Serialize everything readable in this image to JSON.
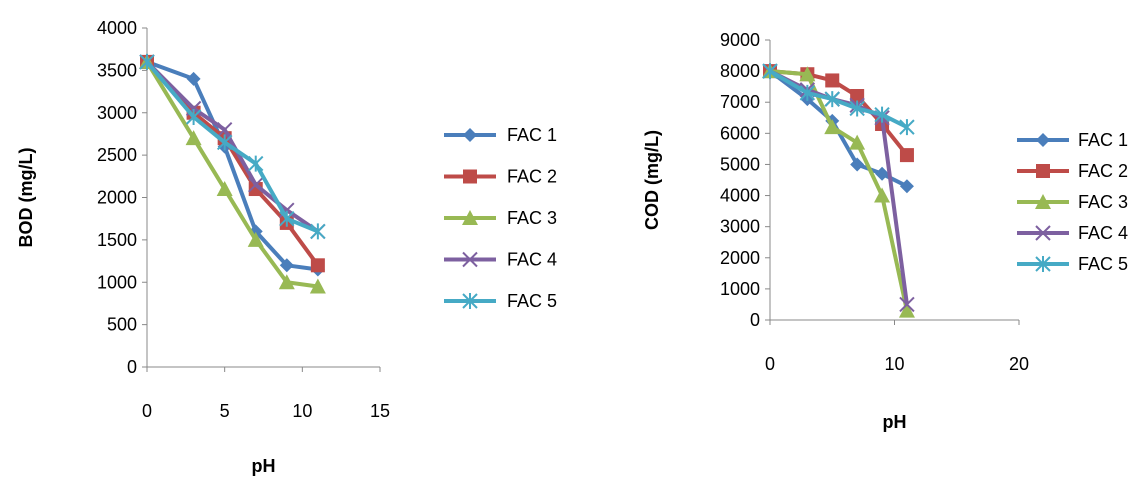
{
  "chart_data": [
    {
      "type": "line",
      "title": "",
      "xlabel": "pH",
      "ylabel": "BOD (mg/L)",
      "xlim": [
        0,
        15
      ],
      "ylim": [
        0,
        4000
      ],
      "xticks": [
        0,
        5,
        10,
        15
      ],
      "yticks": [
        0,
        500,
        1000,
        1500,
        2000,
        2500,
        3000,
        3500,
        4000
      ],
      "x": [
        0,
        3,
        5,
        7,
        9,
        11
      ],
      "grid": false,
      "legend_position": "right",
      "series": [
        {
          "name": "FAC 1",
          "color": "#4a7ebb",
          "marker": "diamond",
          "values": [
            3600,
            3400,
            2600,
            1600,
            1200,
            1150
          ]
        },
        {
          "name": "FAC 2",
          "color": "#be4b48",
          "marker": "square",
          "values": [
            3600,
            3000,
            2700,
            2100,
            1700,
            1200
          ]
        },
        {
          "name": "FAC 3",
          "color": "#98b954",
          "marker": "triangle",
          "values": [
            3600,
            2700,
            2100,
            1500,
            1000,
            950
          ]
        },
        {
          "name": "FAC 4",
          "color": "#7d60a0",
          "marker": "x",
          "values": [
            3600,
            3050,
            2800,
            2150,
            1850,
            1600
          ]
        },
        {
          "name": "FAC 5",
          "color": "#46aac5",
          "marker": "star",
          "values": [
            3600,
            2950,
            2650,
            2400,
            1750,
            1600
          ]
        }
      ]
    },
    {
      "type": "line",
      "title": "",
      "xlabel": "pH",
      "ylabel": "COD (mg/L)",
      "xlim": [
        0,
        20
      ],
      "ylim": [
        0,
        9000
      ],
      "xticks": [
        0,
        10,
        20
      ],
      "yticks": [
        0,
        1000,
        2000,
        3000,
        4000,
        5000,
        6000,
        7000,
        8000,
        9000
      ],
      "x": [
        0,
        3,
        5,
        7,
        9,
        11
      ],
      "grid": false,
      "legend_position": "right",
      "series": [
        {
          "name": "FAC 1",
          "color": "#4a7ebb",
          "marker": "diamond",
          "values": [
            8000,
            7100,
            6400,
            5000,
            4700,
            4300
          ]
        },
        {
          "name": "FAC 2",
          "color": "#be4b48",
          "marker": "square",
          "values": [
            8000,
            7900,
            7700,
            7200,
            6300,
            5300
          ]
        },
        {
          "name": "FAC 3",
          "color": "#98b954",
          "marker": "triangle",
          "values": [
            8000,
            7900,
            6200,
            5700,
            4000,
            300
          ]
        },
        {
          "name": "FAC 4",
          "color": "#7d60a0",
          "marker": "x",
          "values": [
            8000,
            7400,
            7100,
            6900,
            6500,
            500
          ]
        },
        {
          "name": "FAC 5",
          "color": "#46aac5",
          "marker": "star",
          "values": [
            8000,
            7300,
            7100,
            6800,
            6600,
            6200
          ]
        }
      ]
    }
  ]
}
